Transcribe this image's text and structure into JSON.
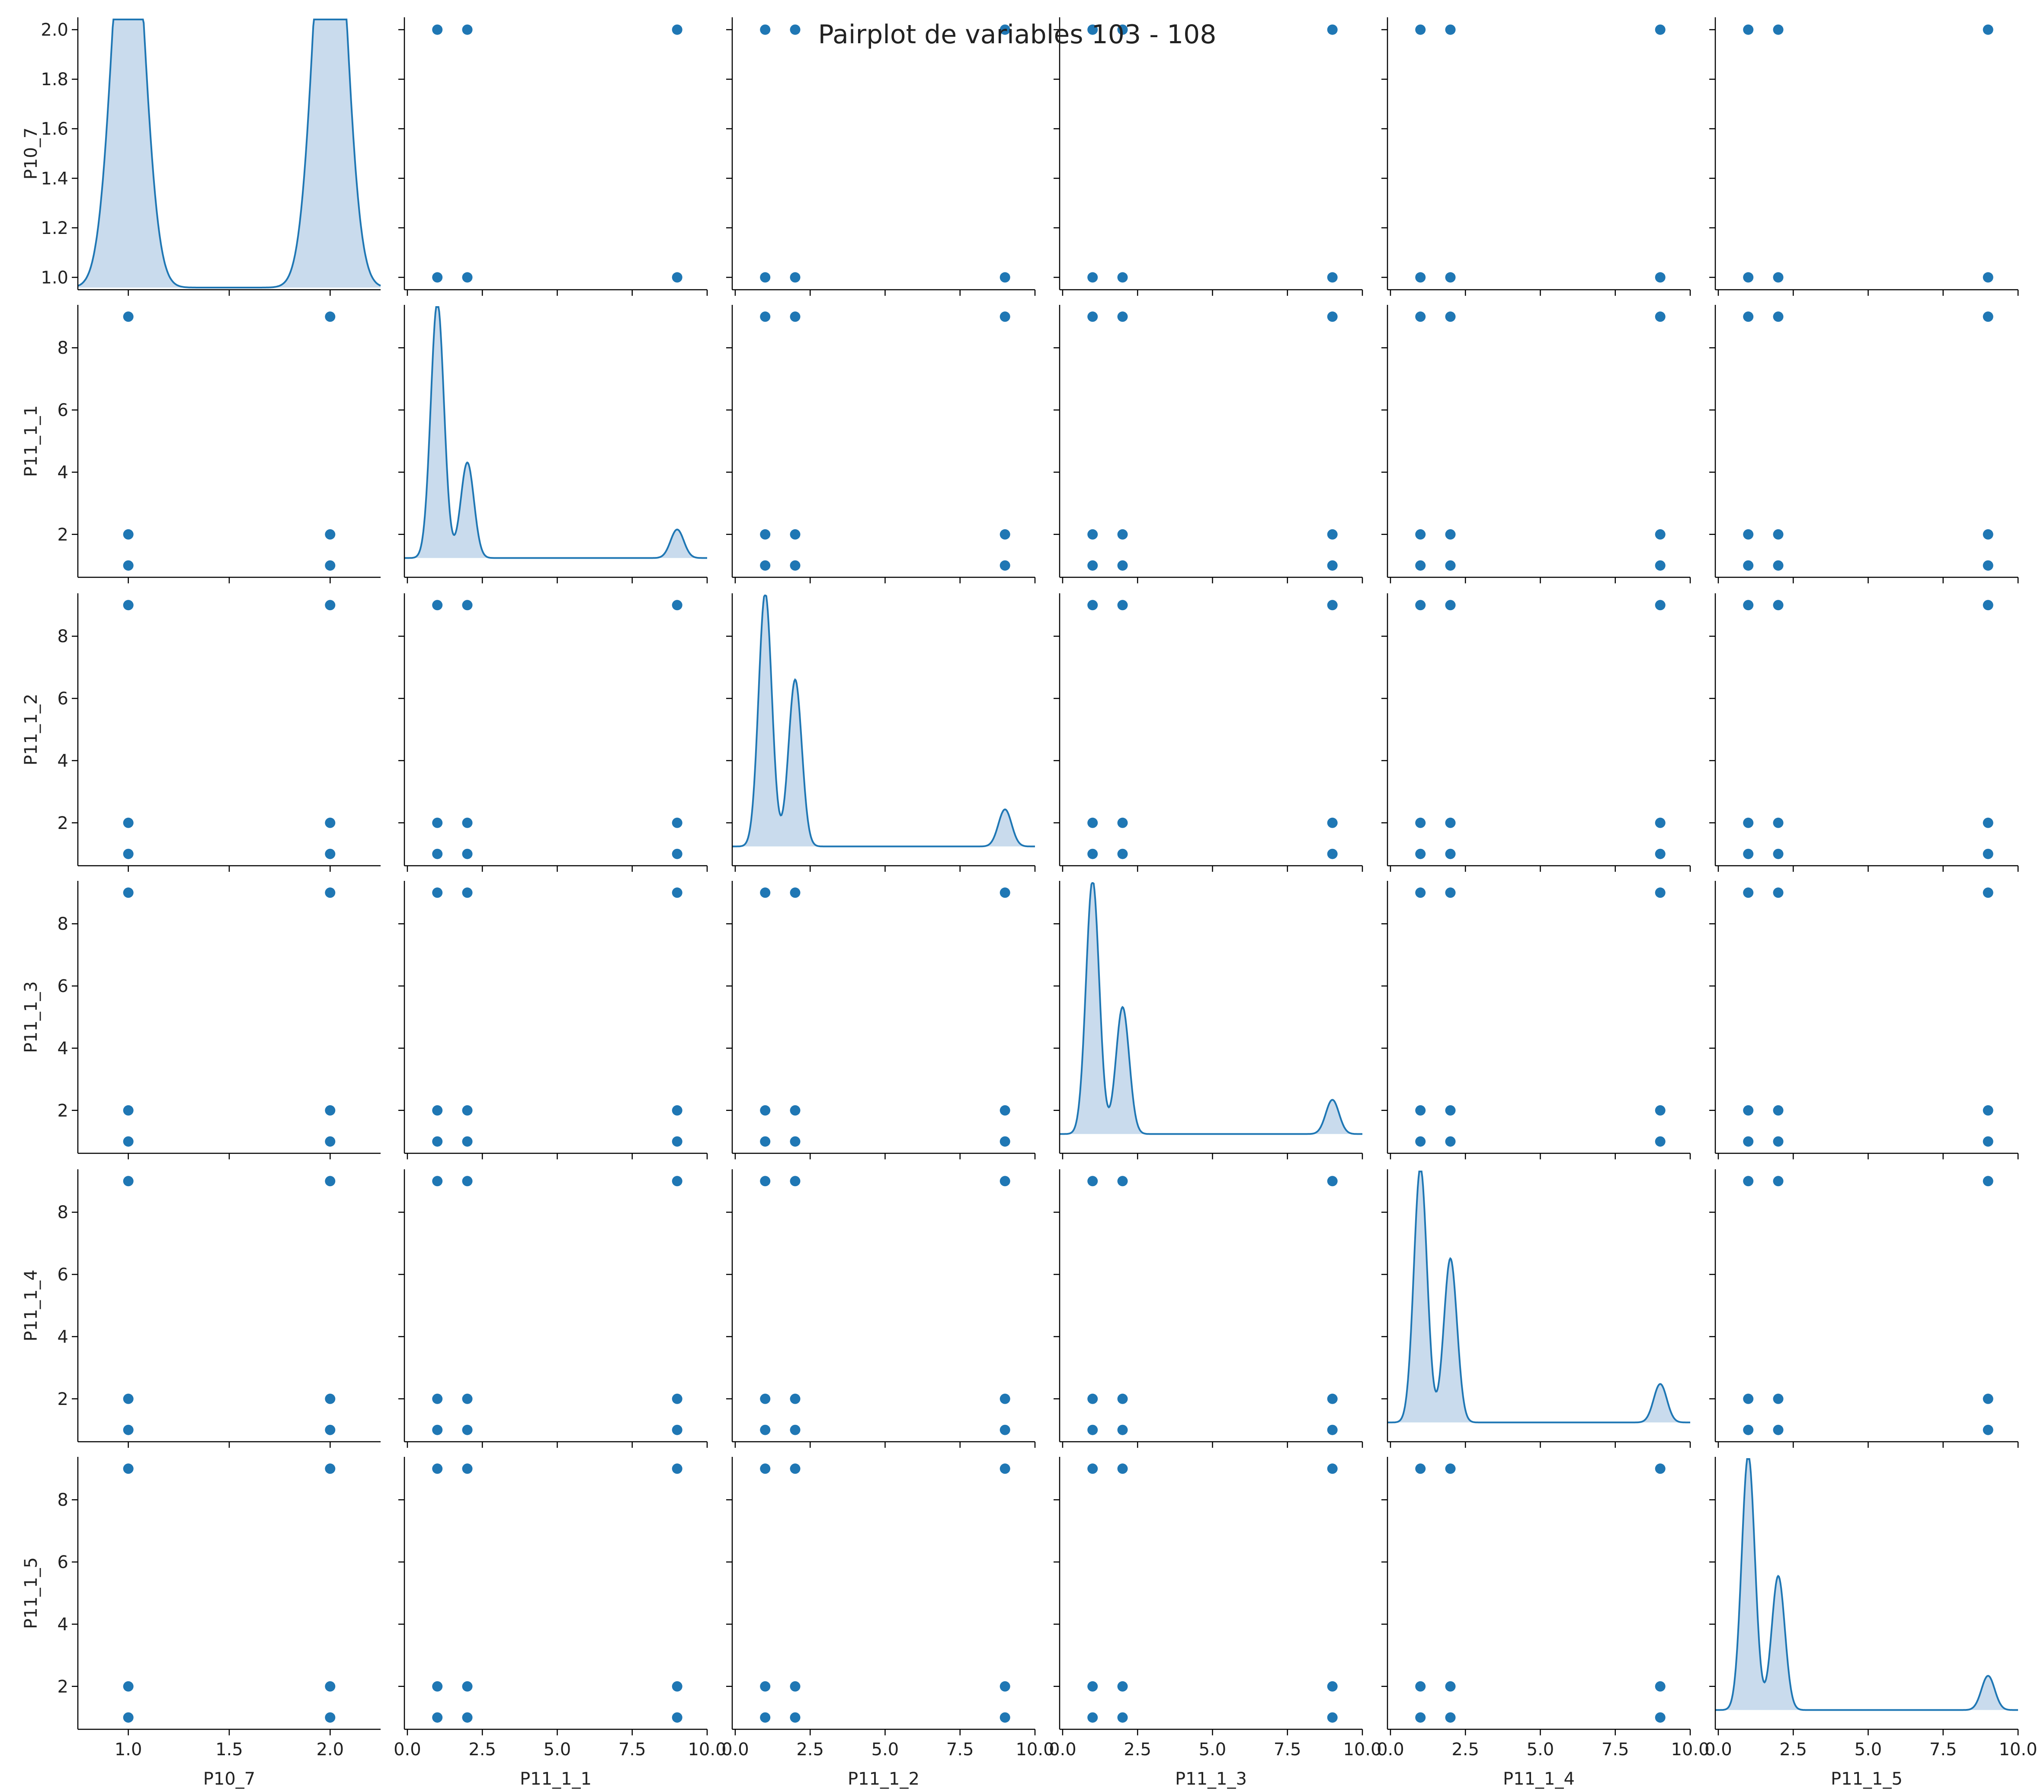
{
  "chart_data": {
    "type": "pairplot",
    "title": "Pairplot de variables 103 - 108",
    "variables": [
      "P10_7",
      "P11_1_1",
      "P11_1_2",
      "P11_1_3",
      "P11_1_4",
      "P11_1_5"
    ],
    "diag_kind": "kde",
    "offdiag_kind": "scatter",
    "color": "#1f77b4",
    "fill_color": "#c6d9ec",
    "grid": false,
    "axes": {
      "P10_7": {
        "range": [
          0.95,
          2.05
        ],
        "ticks": [
          1.0,
          1.2,
          1.4,
          1.6,
          1.8,
          2.0
        ],
        "tick_labels": [
          "1.0",
          "1.2",
          "1.4",
          "1.6",
          "1.8",
          "2.0"
        ]
      },
      "P11_1_1": {
        "range": [
          0.62,
          9.38
        ],
        "ticks": [
          2,
          4,
          6,
          8
        ],
        "tick_labels": [
          "2",
          "4",
          "6",
          "8"
        ]
      },
      "P11_1_2": {
        "range": [
          0.62,
          9.38
        ],
        "ticks": [
          2,
          4,
          6,
          8
        ],
        "tick_labels": [
          "2",
          "4",
          "6",
          "8"
        ]
      },
      "P11_1_3": {
        "range": [
          0.62,
          9.38
        ],
        "ticks": [
          2,
          4,
          6,
          8
        ],
        "tick_labels": [
          "2",
          "4",
          "6",
          "8"
        ]
      },
      "P11_1_4": {
        "range": [
          0.62,
          9.38
        ],
        "ticks": [
          2,
          4,
          6,
          8
        ],
        "tick_labels": [
          "2",
          "4",
          "6",
          "8"
        ]
      },
      "P11_1_5": {
        "range": [
          0.62,
          9.38
        ],
        "ticks": [
          2,
          4,
          6,
          8
        ],
        "tick_labels": [
          "2",
          "4",
          "6",
          "8"
        ]
      }
    },
    "x_axes": {
      "P10_7": {
        "range": [
          0.75,
          2.25
        ],
        "ticks": [
          1.0,
          1.5,
          2.0
        ],
        "tick_labels": [
          "1.0",
          "1.5",
          "2.0"
        ]
      },
      "P11_1_1": {
        "range": [
          -0.1,
          10.0
        ],
        "ticks": [
          0.0,
          2.5,
          5.0,
          7.5,
          10.0
        ],
        "tick_labels": [
          "0.0",
          "2.5",
          "5.0",
          "7.5",
          "10.0"
        ]
      },
      "P11_1_2": {
        "range": [
          -0.1,
          10.0
        ],
        "ticks": [
          0.0,
          2.5,
          5.0,
          7.5,
          10.0
        ],
        "tick_labels": [
          "0.0",
          "2.5",
          "5.0",
          "7.5",
          "10.0"
        ]
      },
      "P11_1_3": {
        "range": [
          -0.1,
          10.0
        ],
        "ticks": [
          0.0,
          2.5,
          5.0,
          7.5,
          10.0
        ],
        "tick_labels": [
          "0.0",
          "2.5",
          "5.0",
          "7.5",
          "10.0"
        ]
      },
      "P11_1_4": {
        "range": [
          -0.1,
          10.0
        ],
        "ticks": [
          0.0,
          2.5,
          5.0,
          7.5,
          10.0
        ],
        "tick_labels": [
          "0.0",
          "2.5",
          "5.0",
          "7.5",
          "10.0"
        ]
      },
      "P11_1_5": {
        "range": [
          -0.1,
          10.0
        ],
        "ticks": [
          0.0,
          2.5,
          5.0,
          7.5,
          10.0
        ],
        "tick_labels": [
          "0.0",
          "2.5",
          "5.0",
          "7.5",
          "10.0"
        ]
      }
    },
    "observed_values": {
      "P10_7": [
        1,
        2
      ],
      "P11_1_1": [
        1,
        2,
        9
      ],
      "P11_1_2": [
        1,
        2,
        9
      ],
      "P11_1_3": [
        1,
        2,
        9
      ],
      "P11_1_4": [
        1,
        2,
        9
      ],
      "P11_1_5": [
        1,
        2,
        9
      ]
    },
    "diagonal_density_peaks": {
      "P10_7": [
        {
          "x": 1,
          "height": 1.82
        },
        {
          "x": 2,
          "height": 2.0
        }
      ],
      "P11_1_1": [
        {
          "x": 1,
          "height": 8.98
        },
        {
          "x": 2,
          "height": 3.35
        },
        {
          "x": 9,
          "height": 1.0
        }
      ],
      "P11_1_2": [
        {
          "x": 1,
          "height": 8.9
        },
        {
          "x": 2,
          "height": 5.85
        },
        {
          "x": 9,
          "height": 1.3
        }
      ],
      "P11_1_3": [
        {
          "x": 1,
          "height": 8.9
        },
        {
          "x": 2,
          "height": 4.45
        },
        {
          "x": 9,
          "height": 1.2
        }
      ],
      "P11_1_4": [
        {
          "x": 1,
          "height": 8.95
        },
        {
          "x": 2,
          "height": 5.75
        },
        {
          "x": 9,
          "height": 1.35
        }
      ],
      "P11_1_5": [
        {
          "x": 1,
          "height": 8.95
        },
        {
          "x": 2,
          "height": 4.7
        },
        {
          "x": 9,
          "height": 1.2
        }
      ]
    }
  }
}
